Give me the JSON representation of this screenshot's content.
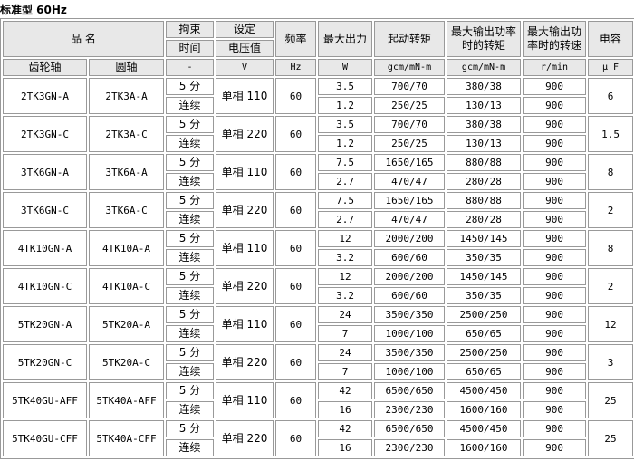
{
  "title": "标准型 60Hz",
  "header": {
    "product_name": "品 名",
    "lock_time": [
      "拘束",
      "时间"
    ],
    "voltage": [
      "设定",
      "电压值"
    ],
    "frequency": "频率",
    "max_output": "最大出力",
    "start_torque": "起动转矩",
    "max_power_torque": [
      "最大输出功率",
      "时的转矩"
    ],
    "max_power_speed": [
      "最大输出功",
      "率时的转速"
    ],
    "capacitor": "电容",
    "gear_shaft": "齿轮轴",
    "round_shaft": "圆轴",
    "units": [
      "-",
      "V",
      "Hz",
      "W",
      "gcm/mN-m",
      "gcm/mN-m",
      "r/min",
      "μ F"
    ]
  },
  "rows": [
    {
      "gear": "2TK3GN-A",
      "round": "2TK3A-A",
      "voltage": "单相 110",
      "freq": "60",
      "cap": "6",
      "sub": [
        [
          "5 分",
          "3.5",
          "700/70",
          "380/38",
          "900"
        ],
        [
          "连续",
          "1.2",
          "250/25",
          "130/13",
          "900"
        ]
      ]
    },
    {
      "gear": "2TK3GN-C",
      "round": "2TK3A-C",
      "voltage": "单相 220",
      "freq": "60",
      "cap": "1.5",
      "sub": [
        [
          "5 分",
          "3.5",
          "700/70",
          "380/38",
          "900"
        ],
        [
          "连续",
          "1.2",
          "250/25",
          "130/13",
          "900"
        ]
      ]
    },
    {
      "gear": "3TK6GN-A",
      "round": "3TK6A-A",
      "voltage": "单相 110",
      "freq": "60",
      "cap": "8",
      "sub": [
        [
          "5 分",
          "7.5",
          "1650/165",
          "880/88",
          "900"
        ],
        [
          "连续",
          "2.7",
          "470/47",
          "280/28",
          "900"
        ]
      ]
    },
    {
      "gear": "3TK6GN-C",
      "round": "3TK6A-C",
      "voltage": "单相 220",
      "freq": "60",
      "cap": "2",
      "sub": [
        [
          "5 分",
          "7.5",
          "1650/165",
          "880/88",
          "900"
        ],
        [
          "连续",
          "2.7",
          "470/47",
          "280/28",
          "900"
        ]
      ]
    },
    {
      "gear": "4TK10GN-A",
      "round": "4TK10A-A",
      "voltage": "单相 110",
      "freq": "60",
      "cap": "8",
      "sub": [
        [
          "5 分",
          "12",
          "2000/200",
          "1450/145",
          "900"
        ],
        [
          "连续",
          "3.2",
          "600/60",
          "350/35",
          "900"
        ]
      ]
    },
    {
      "gear": "4TK10GN-C",
      "round": "4TK10A-C",
      "voltage": "单相 220",
      "freq": "60",
      "cap": "2",
      "sub": [
        [
          "5 分",
          "12",
          "2000/200",
          "1450/145",
          "900"
        ],
        [
          "连续",
          "3.2",
          "600/60",
          "350/35",
          "900"
        ]
      ]
    },
    {
      "gear": "5TK20GN-A",
      "round": "5TK20A-A",
      "voltage": "单相 110",
      "freq": "60",
      "cap": "12",
      "sub": [
        [
          "5 分",
          "24",
          "3500/350",
          "2500/250",
          "900"
        ],
        [
          "连续",
          "7",
          "1000/100",
          "650/65",
          "900"
        ]
      ]
    },
    {
      "gear": "5TK20GN-C",
      "round": "5TK20A-C",
      "voltage": "单相 220",
      "freq": "60",
      "cap": "3",
      "sub": [
        [
          "5 分",
          "24",
          "3500/350",
          "2500/250",
          "900"
        ],
        [
          "连续",
          "7",
          "1000/100",
          "650/65",
          "900"
        ]
      ]
    },
    {
      "gear": "5TK40GU-AFF",
      "round": "5TK40A-AFF",
      "voltage": "单相 110",
      "freq": "60",
      "cap": "25",
      "sub": [
        [
          "5 分",
          "42",
          "6500/650",
          "4500/450",
          "900"
        ],
        [
          "连续",
          "16",
          "2300/230",
          "1600/160",
          "900"
        ]
      ]
    },
    {
      "gear": "5TK40GU-CFF",
      "round": "5TK40A-CFF",
      "voltage": "单相 220",
      "freq": "60",
      "cap": "25",
      "sub": [
        [
          "5 分",
          "42",
          "6500/650",
          "4500/450",
          "900"
        ],
        [
          "连续",
          "16",
          "2300/230",
          "1600/160",
          "900"
        ]
      ]
    }
  ]
}
